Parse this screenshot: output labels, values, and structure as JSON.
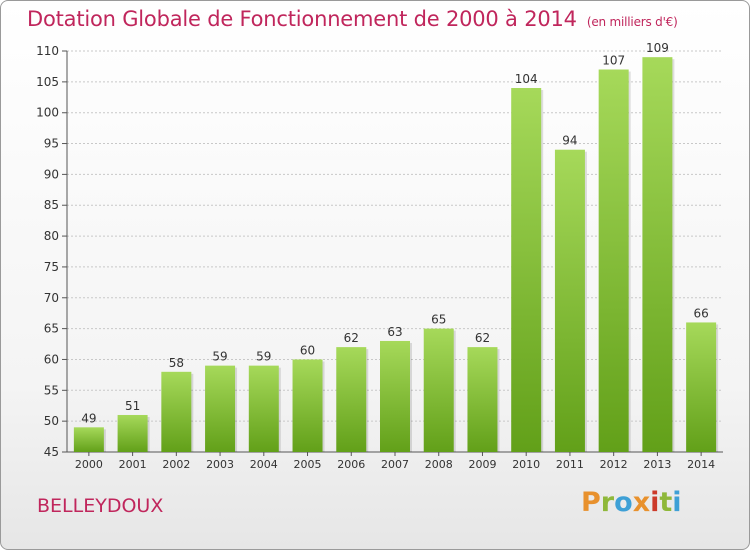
{
  "header": {
    "title": "Dotation Globale de Fonctionnement de 2000 à 2014",
    "subtitle": "(en milliers d'€)"
  },
  "footer": {
    "commune": "BELLEYDOUX",
    "logo": "Proxiti",
    "logo_colors": [
      "#e8912d",
      "#8fb83a",
      "#3ea0d6",
      "#e8912d",
      "#cc3a2a",
      "#8fb83a",
      "#3ea0d6"
    ]
  },
  "colors": {
    "bar_light": "#a6d95a",
    "bar_dark": "#62a019",
    "title": "#c0265c",
    "text": "#333333",
    "grid": "#c8c8c8"
  },
  "chart_data": {
    "type": "bar",
    "title": "Dotation Globale de Fonctionnement de 2000 à 2014",
    "subtitle": "(en milliers d'€)",
    "categories": [
      "2000",
      "2001",
      "2002",
      "2003",
      "2004",
      "2005",
      "2006",
      "2007",
      "2008",
      "2009",
      "2010",
      "2011",
      "2012",
      "2013",
      "2014"
    ],
    "values": [
      49,
      51,
      58,
      59,
      59,
      60,
      62,
      63,
      65,
      62,
      104,
      94,
      107,
      109,
      66
    ],
    "data_labels": [
      "49",
      "51",
      "58",
      "59",
      "59",
      "60",
      "62",
      "63",
      "65",
      "62",
      "104",
      "94",
      "107",
      "109",
      "66"
    ],
    "ylim": [
      45,
      110
    ],
    "yticks": [
      45,
      50,
      55,
      60,
      65,
      70,
      75,
      80,
      85,
      90,
      95,
      100,
      105,
      110
    ],
    "grid": true,
    "xlabel": "",
    "ylabel": ""
  }
}
